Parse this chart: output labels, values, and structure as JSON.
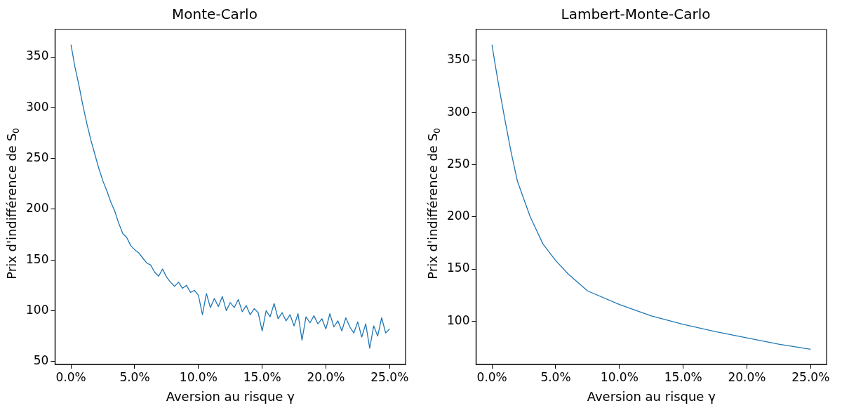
{
  "chart_data": [
    {
      "type": "line",
      "title": "Monte-Carlo",
      "xlabel": "Aversion au risque γ",
      "ylabel": "Prix d'indifférence de S$_{0}$",
      "x": [
        0,
        0.003125,
        0.00625,
        0.009375,
        0.0125,
        0.015625,
        0.01875,
        0.021875,
        0.025,
        0.028125,
        0.03125,
        0.034375,
        0.0375,
        0.040625,
        0.04375,
        0.046875,
        0.05,
        0.053125,
        0.05625,
        0.059375,
        0.0625,
        0.065625,
        0.06875,
        0.071875,
        0.075,
        0.078125,
        0.08125,
        0.084375,
        0.0875,
        0.090625,
        0.09375,
        0.096875,
        0.1,
        0.103125,
        0.10625,
        0.109375,
        0.1125,
        0.115625,
        0.11875,
        0.121875,
        0.125,
        0.128125,
        0.13125,
        0.134375,
        0.1375,
        0.140625,
        0.14375,
        0.146875,
        0.15,
        0.153125,
        0.15625,
        0.159375,
        0.1625,
        0.165625,
        0.16875,
        0.171875,
        0.175,
        0.178125,
        0.18125,
        0.184375,
        0.1875,
        0.190625,
        0.19375,
        0.196875,
        0.2,
        0.203125,
        0.20625,
        0.209375,
        0.2125,
        0.215625,
        0.21875,
        0.221875,
        0.225,
        0.228125,
        0.23125,
        0.234375,
        0.2375,
        0.240625,
        0.24375,
        0.246875,
        0.25
      ],
      "series": [
        {
          "color": "#1f77b4",
          "values": [
            362,
            340,
            322,
            302,
            284,
            268,
            254,
            240,
            228,
            218,
            207,
            198,
            186,
            176,
            172,
            164,
            160,
            157,
            152,
            147,
            145,
            138,
            134,
            141,
            133,
            128,
            124,
            128,
            122,
            125,
            118,
            120,
            115,
            96,
            117,
            103,
            112,
            104,
            114,
            100,
            108,
            103,
            111,
            99,
            105,
            96,
            102,
            98,
            80,
            100,
            94,
            107,
            92,
            98,
            90,
            96,
            85,
            97,
            71,
            94,
            88,
            95,
            87,
            92,
            82,
            97,
            84,
            90,
            80,
            93,
            84,
            78,
            89,
            74,
            87,
            63,
            85,
            75,
            93,
            78,
            82
          ]
        }
      ],
      "xlim": [
        -0.0125,
        0.2625
      ],
      "xticks": [
        {
          "value": 0,
          "label": "0.0%"
        },
        {
          "value": 0.05,
          "label": "5.0%"
        },
        {
          "value": 0.1,
          "label": "10.0%"
        },
        {
          "value": 0.15,
          "label": "15.0%"
        },
        {
          "value": 0.2,
          "label": "20.0%"
        },
        {
          "value": 0.25,
          "label": "25.0%"
        }
      ],
      "ylim": [
        47,
        377
      ],
      "yticks": [
        50,
        100,
        150,
        200,
        250,
        300,
        350
      ],
      "grid": false,
      "legend": false
    },
    {
      "type": "line",
      "title": "Lambert-Monte-Carlo",
      "xlabel": "Aversion au risque γ",
      "ylabel": "Prix d'indifférence de S$_{0}$",
      "x": [
        0,
        0.0025,
        0.005,
        0.01,
        0.015,
        0.02,
        0.03,
        0.04,
        0.05,
        0.06,
        0.075,
        0.1,
        0.125,
        0.15,
        0.175,
        0.2,
        0.225,
        0.25
      ],
      "series": [
        {
          "color": "#1f77b4",
          "values": [
            365,
            346,
            328,
            294,
            262,
            234,
            200,
            174,
            158,
            145,
            129,
            116,
            105,
            97,
            90,
            84,
            78,
            73
          ]
        }
      ],
      "xlim": [
        -0.0125,
        0.2625
      ],
      "xticks": [
        {
          "value": 0,
          "label": "0.0%"
        },
        {
          "value": 0.05,
          "label": "5.0%"
        },
        {
          "value": 0.1,
          "label": "10.0%"
        },
        {
          "value": 0.15,
          "label": "15.0%"
        },
        {
          "value": 0.2,
          "label": "20.0%"
        },
        {
          "value": 0.25,
          "label": "25.0%"
        }
      ],
      "ylim": [
        58.5,
        379.5
      ],
      "yticks": [
        100,
        150,
        200,
        250,
        300,
        350
      ],
      "grid": false,
      "legend": false
    }
  ]
}
